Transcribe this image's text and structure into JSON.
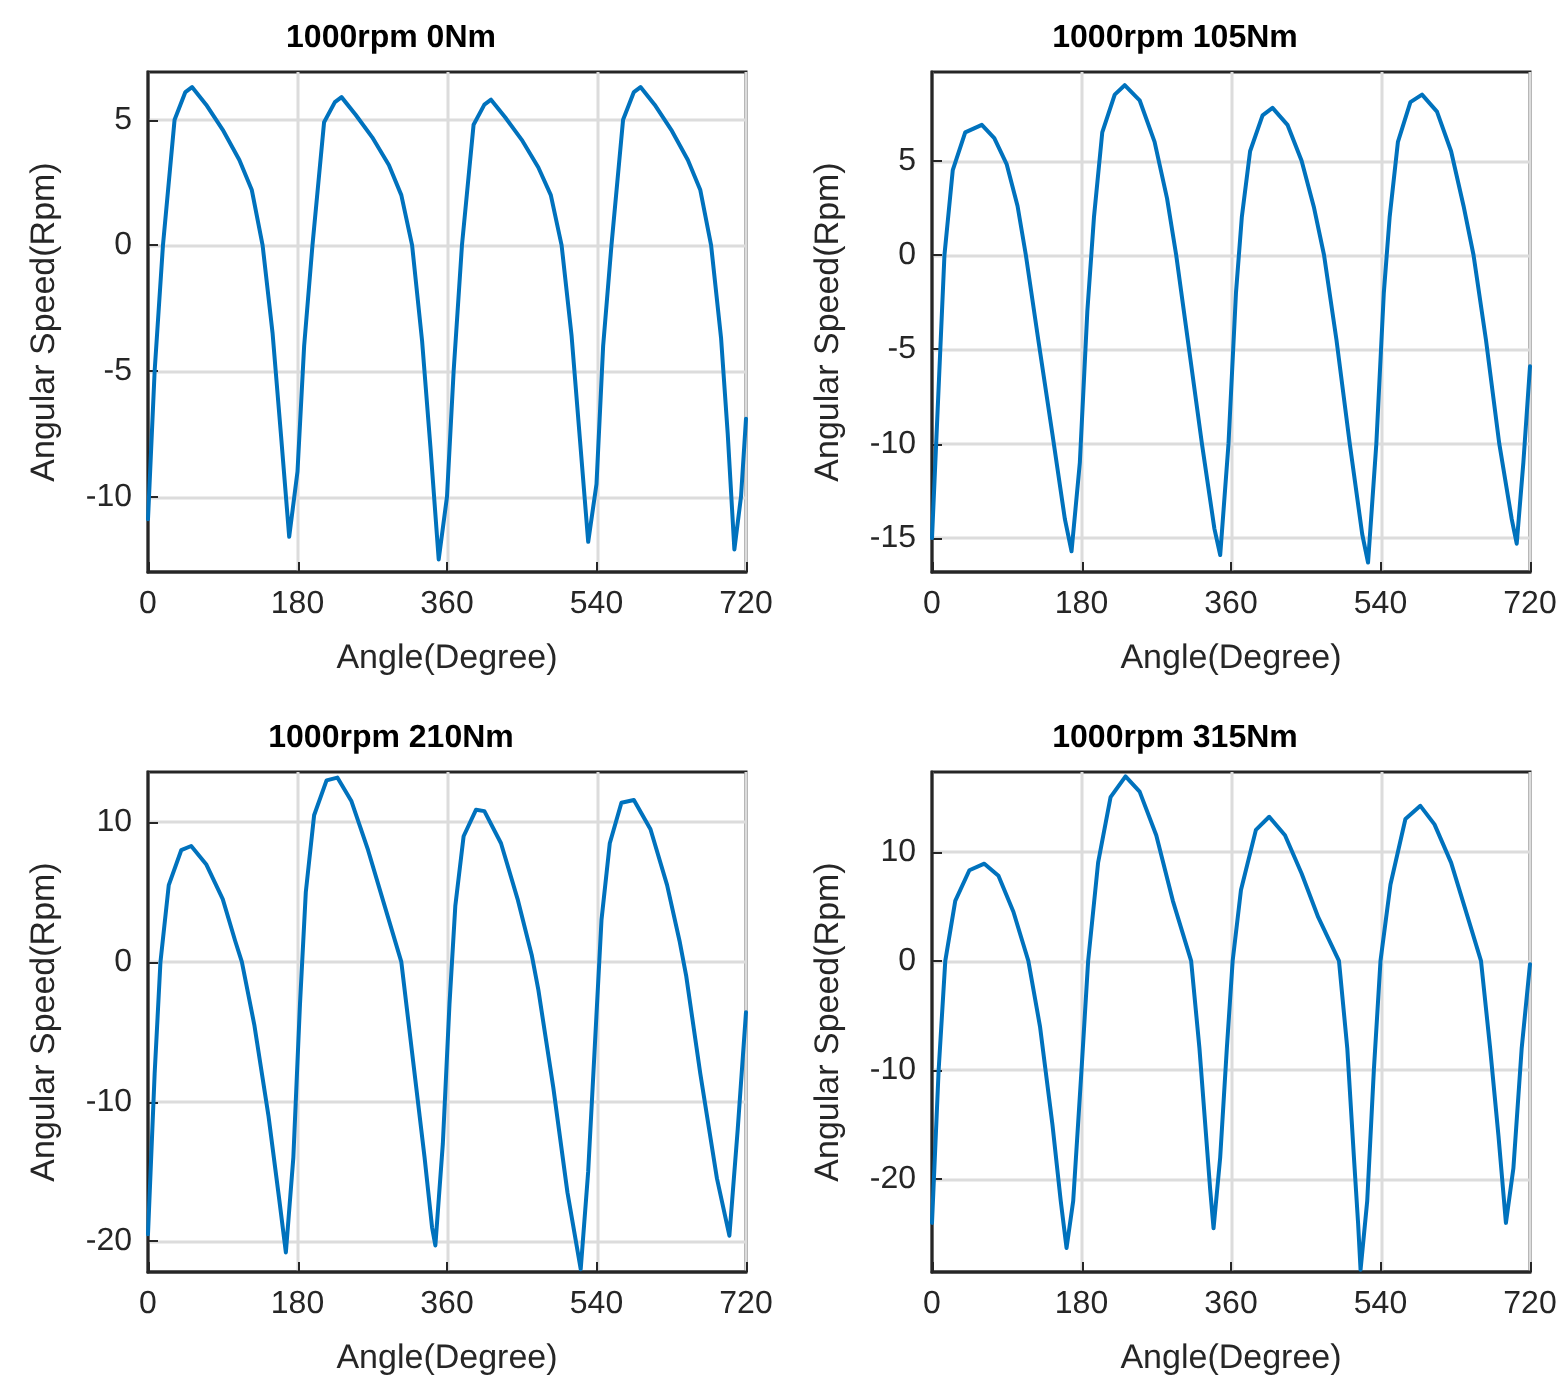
{
  "chart_data": [
    {
      "type": "line",
      "title": "1000rpm 0Nm",
      "xlabel": "Angle(Degree)",
      "ylabel": "Angular Speed(Rpm)",
      "xlim": [
        0,
        720
      ],
      "xticks": [
        0,
        180,
        360,
        540,
        720
      ],
      "ylim": [
        -13,
        6.9
      ],
      "yticks": [
        -10,
        -5,
        0,
        5
      ],
      "grid": true,
      "marker": "none",
      "line_style": "solid",
      "series": [
        {
          "color": "#0072bd",
          "x": [
            0,
            8,
            18,
            32,
            45,
            53,
            70,
            90,
            110,
            125,
            138,
            150,
            160,
            170,
            180,
            188,
            198,
            212,
            225,
            233,
            250,
            270,
            290,
            305,
            318,
            330,
            340,
            350,
            360,
            368,
            378,
            392,
            405,
            413,
            430,
            450,
            470,
            485,
            498,
            510,
            520,
            530,
            540,
            548,
            558,
            572,
            585,
            593,
            610,
            630,
            650,
            665,
            678,
            690,
            698,
            706,
            714,
            720
          ],
          "values": [
            -10.9,
            -5,
            0,
            5,
            6.1,
            6.3,
            5.6,
            4.6,
            3.4,
            2.2,
            0,
            -3.5,
            -7.5,
            -11.6,
            -9,
            -4,
            0,
            4.9,
            5.7,
            5.9,
            5.2,
            4.3,
            3.2,
            2,
            0,
            -3.8,
            -8,
            -12.5,
            -10,
            -5,
            0,
            4.8,
            5.6,
            5.8,
            5.1,
            4.2,
            3.1,
            2,
            0,
            -3.6,
            -7.7,
            -11.8,
            -9.5,
            -4,
            0,
            5,
            6.1,
            6.3,
            5.6,
            4.6,
            3.4,
            2.2,
            0,
            -3.7,
            -7.5,
            -12.1,
            -10,
            -6.9
          ]
        }
      ]
    },
    {
      "type": "line",
      "title": "1000rpm 105Nm",
      "xlabel": "Angle(Degree)",
      "ylabel": "Angular Speed(Rpm)",
      "xlim": [
        0,
        720
      ],
      "xticks": [
        0,
        180,
        360,
        540,
        720
      ],
      "ylim": [
        -16.8,
        9.7
      ],
      "yticks": [
        -15,
        -10,
        -5,
        0,
        5
      ],
      "grid": true,
      "marker": "none",
      "line_style": "solid",
      "series": [
        {
          "color": "#0072bd",
          "x": [
            0,
            8,
            15,
            25,
            40,
            60,
            75,
            90,
            103,
            113,
            128,
            145,
            160,
            168,
            178,
            187,
            195,
            205,
            220,
            232,
            250,
            268,
            283,
            294,
            308,
            325,
            340,
            347,
            357,
            366,
            373,
            383,
            398,
            410,
            428,
            445,
            460,
            472,
            487,
            503,
            518,
            525,
            535,
            544,
            551,
            561,
            576,
            590,
            608,
            625,
            640,
            652,
            667,
            683,
            698,
            704,
            712,
            720
          ],
          "values": [
            -15,
            -7,
            0,
            4.5,
            6.5,
            6.9,
            6.2,
            4.8,
            2.6,
            0,
            -4.5,
            -9.5,
            -14,
            -15.7,
            -11,
            -3,
            2,
            6.5,
            8.5,
            9,
            8.2,
            6,
            3,
            0,
            -4.5,
            -10,
            -14.5,
            -15.9,
            -10,
            -2,
            2,
            5.5,
            7.4,
            7.8,
            6.9,
            5,
            2.5,
            0,
            -4.5,
            -10,
            -14.8,
            -16.3,
            -10,
            -2,
            2,
            6,
            8.1,
            8.5,
            7.6,
            5.5,
            2.6,
            0,
            -4.5,
            -10,
            -14,
            -15.3,
            -11,
            -5.9
          ]
        }
      ]
    },
    {
      "type": "line",
      "title": "1000rpm 210Nm",
      "xlabel": "Angle(Degree)",
      "ylabel": "Angular Speed(Rpm)",
      "xlim": [
        0,
        720
      ],
      "xticks": [
        0,
        180,
        360,
        540,
        720
      ],
      "ylim": [
        -22.2,
        13.6
      ],
      "yticks": [
        -20,
        -10,
        0,
        10
      ],
      "grid": true,
      "marker": "none",
      "line_style": "solid",
      "series": [
        {
          "color": "#0072bd",
          "x": [
            0,
            8,
            15,
            25,
            40,
            52,
            70,
            90,
            105,
            113,
            128,
            145,
            158,
            166,
            175,
            183,
            190,
            200,
            215,
            228,
            245,
            265,
            285,
            305,
            318,
            333,
            342,
            346,
            355,
            363,
            370,
            380,
            395,
            405,
            425,
            445,
            462,
            470,
            488,
            505,
            521,
            530,
            538,
            546,
            556,
            570,
            585,
            605,
            625,
            640,
            648,
            665,
            685,
            700,
            710,
            720
          ],
          "values": [
            -19.5,
            -8,
            0,
            5.5,
            8,
            8.3,
            7,
            4.5,
            1.5,
            0,
            -4.5,
            -11,
            -17,
            -20.8,
            -14,
            -3,
            5,
            10.5,
            13,
            13.2,
            11.5,
            8,
            4,
            0,
            -6.5,
            -14,
            -19,
            -20.3,
            -13,
            -3,
            4,
            9,
            10.9,
            10.8,
            8.5,
            4.5,
            0.5,
            -2,
            -9,
            -16.5,
            -22,
            -15,
            -6,
            3,
            8.5,
            11.4,
            11.6,
            9.5,
            5.5,
            1.5,
            -1,
            -8,
            -15.5,
            -19.6,
            -12,
            -3.6
          ]
        }
      ]
    },
    {
      "type": "line",
      "title": "1000rpm 315Nm",
      "xlabel": "Angle(Degree)",
      "ylabel": "Angular Speed(Rpm)",
      "xlim": [
        0,
        720
      ],
      "xticks": [
        0,
        180,
        360,
        540,
        720
      ],
      "ylim": [
        -28.5,
        17.3
      ],
      "yticks": [
        -20,
        -10,
        0,
        10
      ],
      "grid": true,
      "marker": "none",
      "line_style": "solid",
      "series": [
        {
          "color": "#0072bd",
          "x": [
            0,
            8,
            16,
            28,
            45,
            63,
            80,
            98,
            110,
            116,
            130,
            145,
            155,
            162,
            170,
            180,
            188,
            200,
            215,
            233,
            250,
            270,
            290,
            312,
            322,
            330,
            335,
            339,
            347,
            355,
            362,
            372,
            390,
            406,
            425,
            445,
            465,
            490,
            500,
            508,
            513,
            516,
            524,
            532,
            540,
            552,
            570,
            588,
            605,
            625,
            645,
            661,
            672,
            682,
            691,
            700,
            710,
            720
          ],
          "values": [
            -24,
            -10,
            0,
            5.5,
            8.3,
            8.9,
            7.8,
            4.5,
            1.5,
            0,
            -6,
            -15,
            -22,
            -26.3,
            -22,
            -10,
            0,
            9,
            15,
            16.9,
            15.5,
            11.5,
            5.5,
            0,
            -8,
            -16,
            -21,
            -24.5,
            -18,
            -8,
            0,
            6.5,
            12,
            13.2,
            11.5,
            8,
            4,
            0,
            -8,
            -18,
            -24,
            -28.3,
            -22,
            -10,
            0,
            7,
            13,
            14.2,
            12.5,
            9,
            4,
            0,
            -8,
            -16,
            -24,
            -19,
            -8,
            -0.3
          ]
        }
      ]
    }
  ]
}
